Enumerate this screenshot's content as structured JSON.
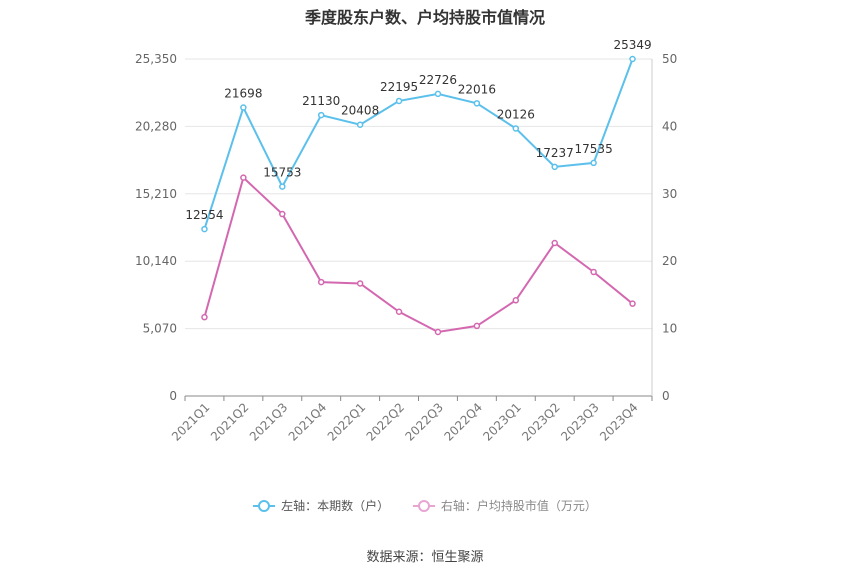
{
  "chart_data": {
    "type": "line",
    "title": "季度股东户数、户均持股市值情况",
    "categories": [
      "2021Q1",
      "2021Q2",
      "2021Q3",
      "2021Q4",
      "2022Q1",
      "2022Q2",
      "2022Q3",
      "2022Q4",
      "2023Q1",
      "2023Q2",
      "2023Q3",
      "2023Q4"
    ],
    "left_axis": {
      "ticks": [
        "0",
        "5,070",
        "10,140",
        "15,210",
        "20,280",
        "25,350"
      ],
      "min": 0,
      "max": 25350
    },
    "right_axis": {
      "ticks": [
        "0",
        "10",
        "20",
        "30",
        "40",
        "50"
      ],
      "min": 0,
      "max": 50
    },
    "series": [
      {
        "name": "左轴：本期数（户）",
        "axis": "left",
        "color": "#5bc0eb",
        "values": [
          12554,
          21698,
          15753,
          21130,
          20408,
          22195,
          22726,
          22016,
          20126,
          17237,
          17535,
          25349
        ],
        "labels": [
          "12554",
          "21698",
          "15753",
          "21130",
          "20408",
          "22195",
          "22726",
          "22016",
          "20126",
          "17237",
          "17535",
          "25349"
        ]
      },
      {
        "name": "右轴：户均持股市值（万元）",
        "axis": "right",
        "color": "#d468b0",
        "values": [
          11.7,
          32.4,
          27.0,
          16.9,
          16.7,
          12.5,
          9.5,
          10.4,
          14.2,
          22.7,
          18.4,
          13.7
        ]
      }
    ],
    "grid": true,
    "legend_position": "bottom"
  },
  "source": "数据来源：恒生聚源"
}
